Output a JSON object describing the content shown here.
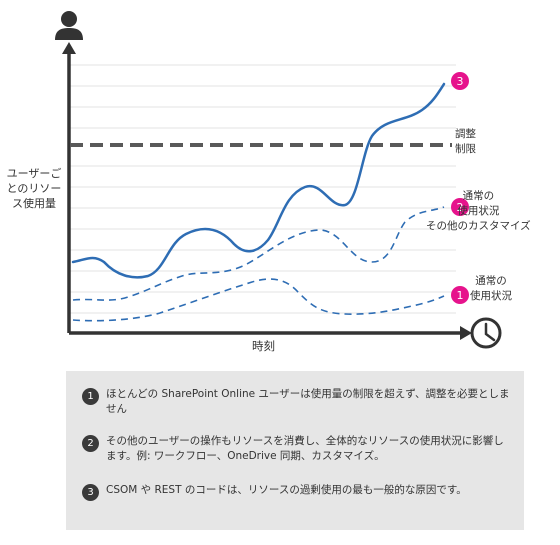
{
  "y_axis_label": "ユーザーごとのリソース使用量",
  "x_axis_label": "時刻",
  "annotations": {
    "throttle_limit": "調整\n制限",
    "custom_usage": "通常の\n使用状況\nその他のカスタマイズ",
    "normal_usage": "通常の\n使用状況"
  },
  "markers": {
    "m1": "1",
    "m2": "2",
    "m3": "3"
  },
  "legend": [
    {
      "number": "1",
      "text": "ほとんどの SharePoint Online ユーザーは使用量の制限を超えず、調整を必要としません"
    },
    {
      "number": "2",
      "text": "その他のユーザーの操作もリソースを消費し、全体的なリソースの使用状況に影響します。例: ワークフロー、OneDrive 同期、カスタマイズ。"
    },
    {
      "number": "3",
      "text": "CSOM や REST のコードは、リソースの過剰使用の最も一般的な原因です。"
    }
  ],
  "colors": {
    "series_line": "#2e6db4",
    "marker": "#e6138c",
    "axis": "#333333",
    "limit_line": "#595959",
    "grid": "#e3e3e3"
  }
}
